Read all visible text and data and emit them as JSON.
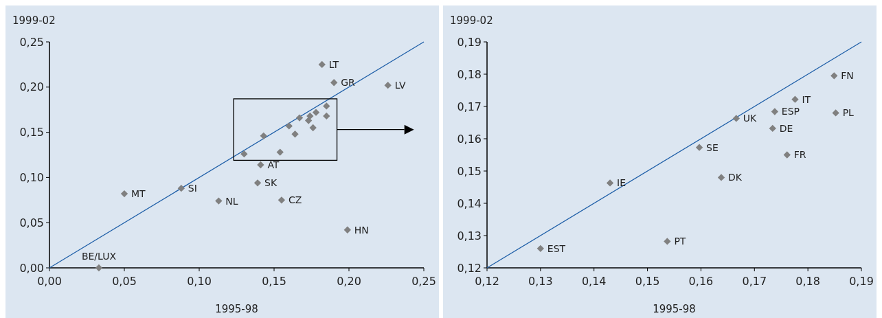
{
  "chart_data": [
    {
      "type": "scatter",
      "xlabel": "1995-98",
      "ylabel": "1999-02",
      "xlim": [
        0,
        0.25
      ],
      "ylim": [
        0,
        0.25
      ],
      "xticks": [
        {
          "value": 0,
          "label": "0,00"
        },
        {
          "value": 0.05,
          "label": "0,05"
        },
        {
          "value": 0.1,
          "label": "0,10"
        },
        {
          "value": 0.15,
          "label": "0,15"
        },
        {
          "value": 0.2,
          "label": "0,20"
        },
        {
          "value": 0.25,
          "label": "0,25"
        }
      ],
      "yticks": [
        {
          "value": 0,
          "label": "0,00"
        },
        {
          "value": 0.05,
          "label": "0,05"
        },
        {
          "value": 0.1,
          "label": "0,10"
        },
        {
          "value": 0.15,
          "label": "0,15"
        },
        {
          "value": 0.2,
          "label": "0,20"
        },
        {
          "value": 0.25,
          "label": "0,25"
        }
      ],
      "marker": "diamond",
      "grid": false,
      "series": [
        {
          "type": "line",
          "marker": "none",
          "color": "#1f5fa8",
          "x": [
            0,
            0.25
          ],
          "values": [
            0,
            0.25
          ]
        },
        {
          "color": "#808080",
          "x": [
            0.033,
            0.05,
            0.088,
            0.113,
            0.141,
            0.139,
            0.155,
            0.199,
            0.182,
            0.19,
            0.226,
            0.13,
            0.143,
            0.154,
            0.16,
            0.164,
            0.167,
            0.174,
            0.173,
            0.176,
            0.178,
            0.185,
            0.185
          ],
          "values": [
            0,
            0.082,
            0.088,
            0.074,
            0.114,
            0.094,
            0.075,
            0.042,
            0.225,
            0.205,
            0.202,
            0.126,
            0.146,
            0.128,
            0.157,
            0.148,
            0.166,
            0.168,
            0.163,
            0.155,
            0.172,
            0.179,
            0.168
          ]
        }
      ],
      "annotations": [
        {
          "text": "BE/LUX",
          "x": 0.033,
          "y": 0
        },
        {
          "text": "MT",
          "x": 0.05,
          "y": 0.082
        },
        {
          "text": "SI",
          "x": 0.088,
          "y": 0.088
        },
        {
          "text": "NL",
          "x": 0.113,
          "y": 0.074
        },
        {
          "text": "AT",
          "x": 0.141,
          "y": 0.114
        },
        {
          "text": "SK",
          "x": 0.139,
          "y": 0.094
        },
        {
          "text": "CZ",
          "x": 0.155,
          "y": 0.075
        },
        {
          "text": "HN",
          "x": 0.199,
          "y": 0.042
        },
        {
          "text": "LT",
          "x": 0.182,
          "y": 0.225
        },
        {
          "text": "GR",
          "x": 0.19,
          "y": 0.205
        },
        {
          "text": "LV",
          "x": 0.226,
          "y": 0.202
        }
      ]
    },
    {
      "type": "scatter",
      "xlabel": "1995-98",
      "ylabel": "1999-02",
      "xlim": [
        0.12,
        0.19
      ],
      "ylim": [
        0.12,
        0.19
      ],
      "xticks": [
        {
          "value": 0.12,
          "label": "0,12"
        },
        {
          "value": 0.13,
          "label": "0,13"
        },
        {
          "value": 0.14,
          "label": "0,14"
        },
        {
          "value": 0.15,
          "label": "0,15"
        },
        {
          "value": 0.16,
          "label": "0,16"
        },
        {
          "value": 0.17,
          "label": "0,17"
        },
        {
          "value": 0.18,
          "label": "0,18"
        },
        {
          "value": 0.19,
          "label": "0,19"
        }
      ],
      "yticks": [
        {
          "value": 0.12,
          "label": "0,12"
        },
        {
          "value": 0.13,
          "label": "0,13"
        },
        {
          "value": 0.14,
          "label": "0,14"
        },
        {
          "value": 0.15,
          "label": "0,15"
        },
        {
          "value": 0.16,
          "label": "0,16"
        },
        {
          "value": 0.17,
          "label": "0,17"
        },
        {
          "value": 0.18,
          "label": "0,18"
        },
        {
          "value": 0.19,
          "label": "0,19"
        }
      ],
      "marker": "diamond",
      "grid": false,
      "series": [
        {
          "type": "line",
          "marker": "none",
          "color": "#1f5fa8",
          "x": [
            0.12,
            0.19
          ],
          "values": [
            0.12,
            0.19
          ]
        },
        {
          "color": "#808080",
          "x": [
            0.13,
            0.143,
            0.1537,
            0.1597,
            0.1638,
            0.1666,
            0.1734,
            0.1738,
            0.1761,
            0.1776,
            0.1849,
            0.1852
          ],
          "values": [
            0.126,
            0.1463,
            0.1282,
            0.1573,
            0.148,
            0.1663,
            0.1632,
            0.1684,
            0.155,
            0.1722,
            0.1795,
            0.168
          ]
        }
      ],
      "annotations": [
        {
          "text": "EST",
          "x": 0.13,
          "y": 0.126
        },
        {
          "text": "IE",
          "x": 0.143,
          "y": 0.1463
        },
        {
          "text": "PT",
          "x": 0.1537,
          "y": 0.1282
        },
        {
          "text": "SE",
          "x": 0.1597,
          "y": 0.1573
        },
        {
          "text": "DK",
          "x": 0.1638,
          "y": 0.148
        },
        {
          "text": "UK",
          "x": 0.1666,
          "y": 0.1663
        },
        {
          "text": "DE",
          "x": 0.1734,
          "y": 0.1632
        },
        {
          "text": "ESP",
          "x": 0.1738,
          "y": 0.1684
        },
        {
          "text": "FR",
          "x": 0.1761,
          "y": 0.155
        },
        {
          "text": "IT",
          "x": 0.1776,
          "y": 0.1722
        },
        {
          "text": "FN",
          "x": 0.1849,
          "y": 0.1795
        },
        {
          "text": "PL",
          "x": 0.1852,
          "y": 0.168
        }
      ]
    }
  ]
}
